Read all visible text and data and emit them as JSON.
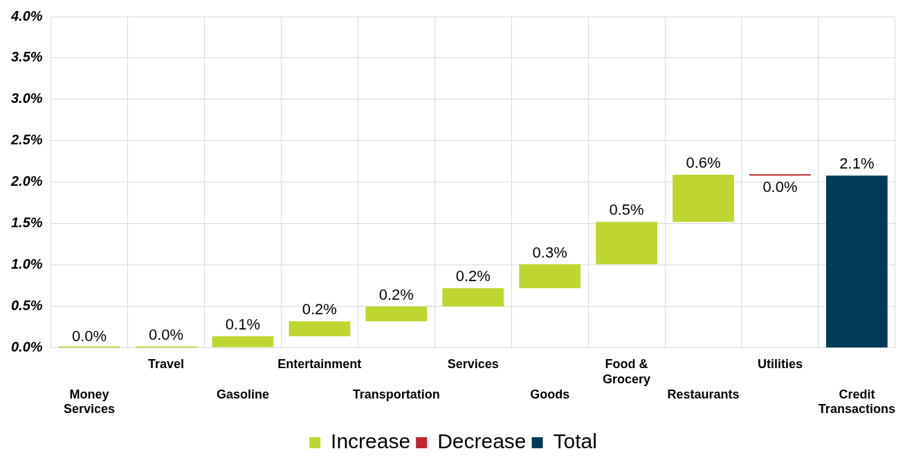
{
  "chart_data": {
    "type": "bar",
    "categories": [
      "Money Services",
      "Travel",
      "Gasoline",
      "Entertainment",
      "Transportation",
      "Services",
      "Goods",
      "Food & Grocery",
      "Restaurants",
      "Utilities",
      "Credit Transactions"
    ],
    "series": [
      {
        "name": "Increase",
        "color": "#bfd630",
        "base": [
          0,
          0,
          0.01,
          0.14,
          0.32,
          0.5,
          0.72,
          1.01,
          1.52,
          null,
          null
        ],
        "values": [
          0,
          0.01,
          0.13,
          0.18,
          0.18,
          0.22,
          0.29,
          0.51,
          0.57,
          null,
          null
        ],
        "value_labels": [
          "0.0%",
          "0.0%",
          "0.1%",
          "0.2%",
          "0.2%",
          "0.2%",
          "0.3%",
          "0.5%",
          "0.6%",
          null,
          null
        ]
      },
      {
        "name": "Decrease",
        "color": "#c0282d",
        "base": [
          null,
          null,
          null,
          null,
          null,
          null,
          null,
          null,
          null,
          2.09,
          null
        ],
        "values": [
          null,
          null,
          null,
          null,
          null,
          null,
          null,
          null,
          null,
          -0.01,
          null
        ],
        "value_labels": [
          null,
          null,
          null,
          null,
          null,
          null,
          null,
          null,
          null,
          "0.0%",
          null
        ]
      },
      {
        "name": "Total",
        "color": "#003a57",
        "base": [
          null,
          null,
          null,
          null,
          null,
          null,
          null,
          null,
          null,
          null,
          0
        ],
        "values": [
          null,
          null,
          null,
          null,
          null,
          null,
          null,
          null,
          null,
          null,
          2.08
        ],
        "value_labels": [
          null,
          null,
          null,
          null,
          null,
          null,
          null,
          null,
          null,
          null,
          "2.1%"
        ]
      }
    ],
    "ylim": [
      0,
      4
    ],
    "yticks": [
      {
        "value": 0,
        "label": "0.0%"
      },
      {
        "value": 0.5,
        "label": "0.5%"
      },
      {
        "value": 1,
        "label": "1.0%"
      },
      {
        "value": 1.5,
        "label": "1.5%"
      },
      {
        "value": 2,
        "label": "2.0%"
      },
      {
        "value": 2.5,
        "label": "2.5%"
      },
      {
        "value": 3,
        "label": "3.0%"
      },
      {
        "value": 3.5,
        "label": "3.5%"
      },
      {
        "value": 4,
        "label": "4.0%"
      }
    ],
    "grid": true,
    "legend": "bottom"
  }
}
